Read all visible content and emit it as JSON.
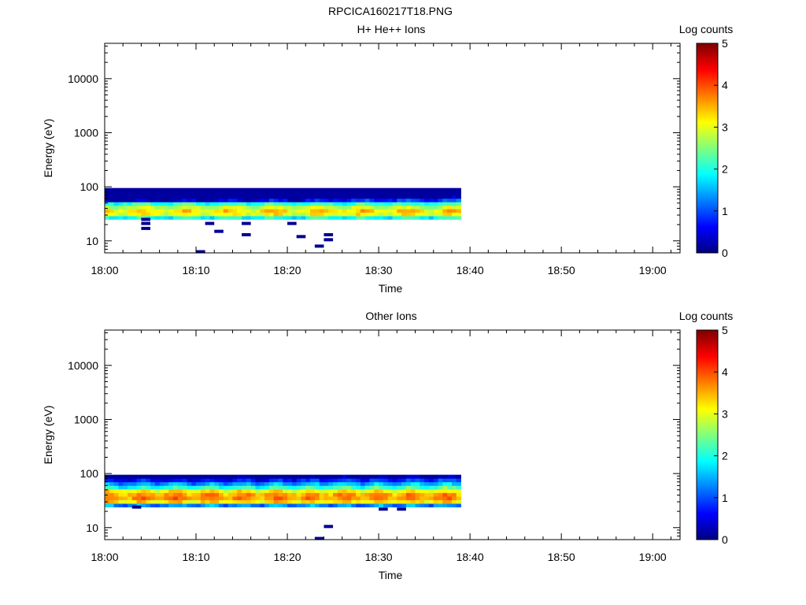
{
  "figure": {
    "title": "RPCICA160217T18.PNG"
  },
  "colormap": [
    "#00007f",
    "#0000ff",
    "#007fff",
    "#00ffff",
    "#7fff7f",
    "#ffff00",
    "#ff7f00",
    "#ff0000",
    "#7f0000"
  ],
  "chart_data": [
    {
      "type": "heatmap",
      "title": "H+ He++ Ions",
      "xlabel": "Time",
      "ylabel": "Energy (eV)",
      "yscale": "log",
      "xlim": [
        "18:00",
        "19:03"
      ],
      "ylim": [
        6,
        45000
      ],
      "xticks": [
        "18:00",
        "18:10",
        "18:20",
        "18:30",
        "18:40",
        "18:50",
        "19:00"
      ],
      "yticks": [
        "10",
        "100",
        "1000",
        "10000"
      ],
      "colorbar": {
        "label": "Log counts",
        "range": [
          0,
          5
        ],
        "ticks": [
          "0",
          "1",
          "2",
          "3",
          "4",
          "5"
        ]
      },
      "band": {
        "time_start": "18:00",
        "time_end": "18:39",
        "energy_low": 25,
        "energy_high": 95
      },
      "sparse": [
        {
          "time": "18:04",
          "energy": 25,
          "log_counts": 0.1
        },
        {
          "time": "18:04",
          "energy": 21,
          "log_counts": 0.1
        },
        {
          "time": "18:04",
          "energy": 17,
          "log_counts": 0.1
        },
        {
          "time": "18:10",
          "energy": 6.3,
          "log_counts": 0.1
        },
        {
          "time": "18:11",
          "energy": 21,
          "log_counts": 0.1
        },
        {
          "time": "18:12",
          "energy": 15,
          "log_counts": 0.1
        },
        {
          "time": "18:15",
          "energy": 21,
          "log_counts": 0.1
        },
        {
          "time": "18:15",
          "energy": 13,
          "log_counts": 0.1
        },
        {
          "time": "18:20",
          "energy": 21,
          "log_counts": 0.1
        },
        {
          "time": "18:21",
          "energy": 12,
          "log_counts": 0.1
        },
        {
          "time": "18:23",
          "energy": 8,
          "log_counts": 0.1
        },
        {
          "time": "18:24",
          "energy": 13,
          "log_counts": 0.1
        },
        {
          "time": "18:24",
          "energy": 10.5,
          "log_counts": 0.1
        }
      ]
    },
    {
      "type": "heatmap",
      "title": "Other Ions",
      "xlabel": "Time",
      "ylabel": "Energy (eV)",
      "yscale": "log",
      "xlim": [
        "18:00",
        "19:03"
      ],
      "ylim": [
        6,
        45000
      ],
      "xticks": [
        "18:00",
        "18:10",
        "18:20",
        "18:30",
        "18:40",
        "18:50",
        "19:00"
      ],
      "yticks": [
        "10",
        "100",
        "1000",
        "10000"
      ],
      "colorbar": {
        "label": "Log counts",
        "range": [
          0,
          5
        ],
        "ticks": [
          "0",
          "1",
          "2",
          "3",
          "4",
          "5"
        ]
      },
      "band": {
        "time_start": "18:00",
        "time_end": "18:39",
        "energy_low": 24,
        "energy_high": 95
      },
      "sparse": [
        {
          "time": "18:03",
          "energy": 24,
          "log_counts": 0.1
        },
        {
          "time": "18:24",
          "energy": 10.5,
          "log_counts": 0.1
        },
        {
          "time": "18:23",
          "energy": 6.3,
          "log_counts": 0.1
        },
        {
          "time": "18:30",
          "energy": 22,
          "log_counts": 0.1
        },
        {
          "time": "18:32",
          "energy": 22,
          "log_counts": 0.1
        }
      ]
    }
  ]
}
